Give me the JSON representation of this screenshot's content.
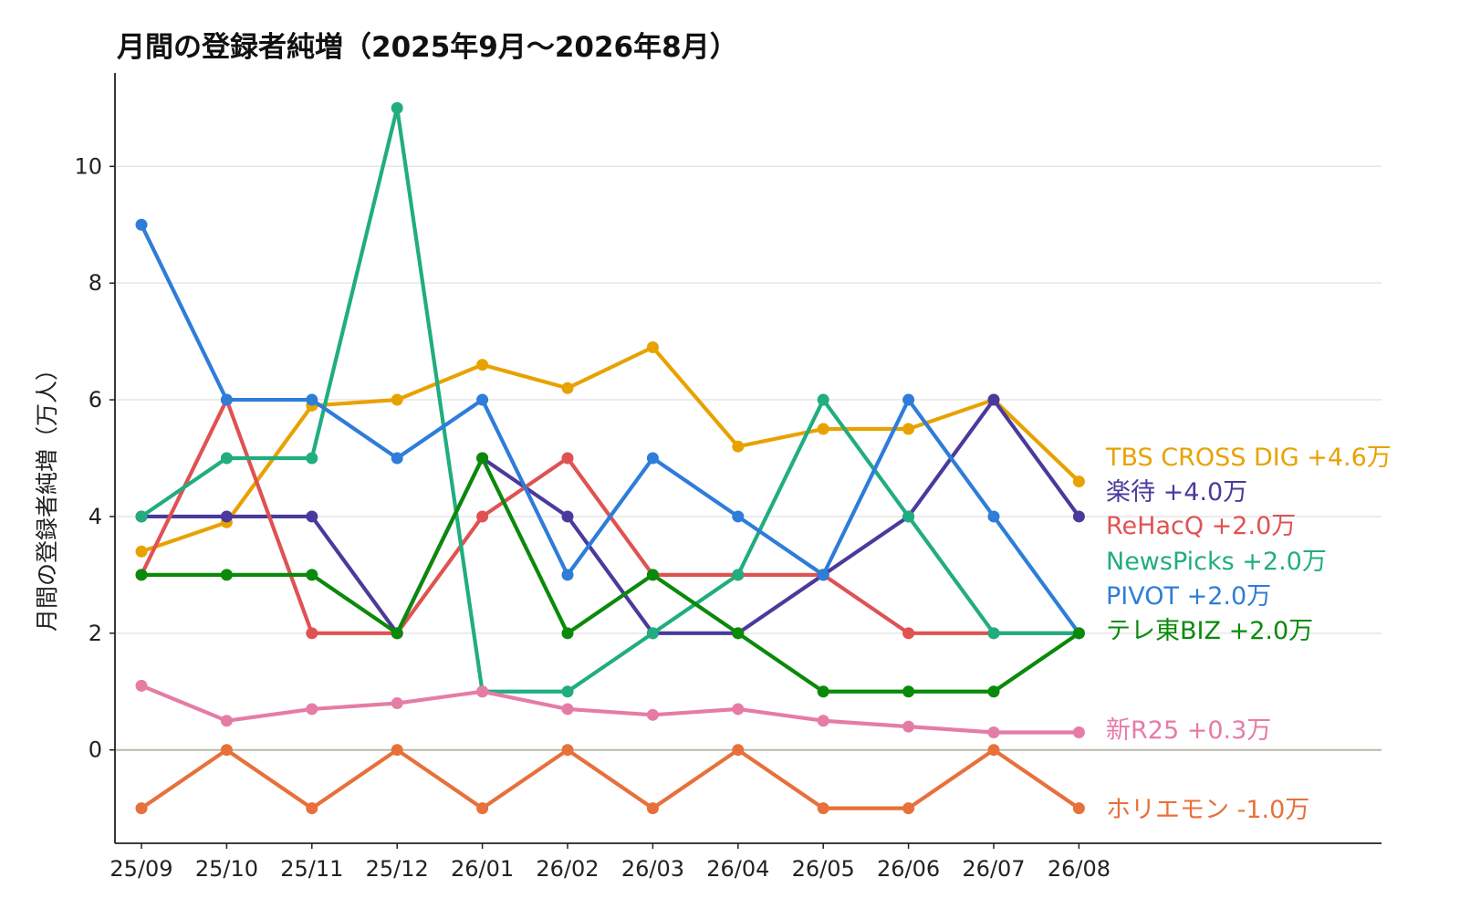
{
  "chart_data": {
    "type": "line",
    "title": "月間の登録者純増（2025年9月〜2026年8月）",
    "xlabel": "",
    "ylabel": "月間の登録者純増（万人）",
    "categories": [
      "25/09",
      "25/10",
      "25/11",
      "25/12",
      "26/01",
      "26/02",
      "26/03",
      "26/04",
      "26/05",
      "26/06",
      "26/07",
      "26/08"
    ],
    "ylim": [
      -1.6,
      11.6
    ],
    "yticks": [
      0,
      2,
      4,
      6,
      8,
      10
    ],
    "grid": "horizontal",
    "legend": "end-of-line labels",
    "series": [
      {
        "name": "TBS CROSS DIG",
        "end_label": "TBS CROSS DIG +4.6万",
        "color": "#E8A200",
        "values": [
          3.4,
          3.9,
          5.9,
          6.0,
          6.6,
          6.2,
          6.9,
          5.2,
          5.5,
          5.5,
          6.0,
          4.6
        ]
      },
      {
        "name": "楽待",
        "end_label": "楽待 +4.0万",
        "color": "#4B3A9C",
        "values": [
          4,
          4,
          4,
          2,
          5,
          4,
          2,
          2,
          3,
          4,
          6,
          4
        ]
      },
      {
        "name": "ReHacQ",
        "end_label": "ReHacQ +2.0万",
        "color": "#E05252",
        "values": [
          3,
          6,
          2,
          2,
          4,
          5,
          3,
          3,
          3,
          2,
          2,
          2
        ]
      },
      {
        "name": "NewsPicks",
        "end_label": "NewsPicks +2.0万",
        "color": "#21AD7F",
        "values": [
          4,
          5,
          5,
          11,
          1,
          1,
          2,
          3,
          6,
          4,
          2,
          2
        ]
      },
      {
        "name": "PIVOT",
        "end_label": "PIVOT +2.0万",
        "color": "#2E7DD8",
        "values": [
          9,
          6,
          6,
          5,
          6,
          3,
          5,
          4,
          3,
          6,
          4,
          2
        ]
      },
      {
        "name": "テレ東BIZ",
        "end_label": "テレ東BIZ +2.0万",
        "color": "#0A8A0A",
        "values": [
          3,
          3,
          3,
          2,
          5,
          2,
          3,
          2,
          1,
          1,
          1,
          2
        ]
      },
      {
        "name": "新R25",
        "end_label": "新R25 +0.3万",
        "color": "#E57CA6",
        "values": [
          1.1,
          0.5,
          0.7,
          0.8,
          1.0,
          0.7,
          0.6,
          0.7,
          0.5,
          0.4,
          0.3,
          0.3
        ]
      },
      {
        "name": "ホリエモン",
        "end_label": "ホリエモン -1.0万",
        "color": "#E8703A",
        "values": [
          -1,
          0,
          -1,
          0,
          -1,
          0,
          -1,
          0,
          -1,
          -1,
          0,
          -1
        ]
      }
    ]
  }
}
